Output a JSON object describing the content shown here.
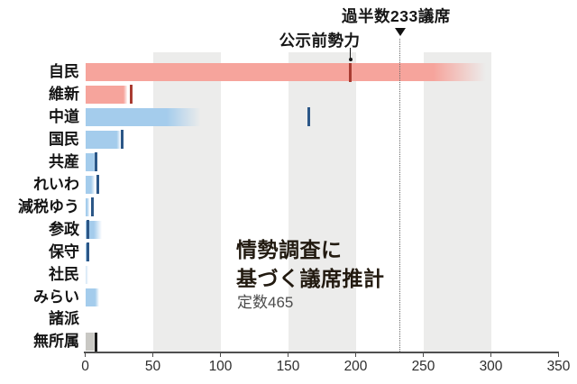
{
  "chart_data": {
    "type": "bar",
    "title_line1": "情勢調査に",
    "title_line2": "基づく議席推計",
    "subtitle": "定数465",
    "total_seats": 465,
    "xlabel": "",
    "ylabel": "",
    "xlim": [
      0,
      350
    ],
    "x_ticks": [
      0,
      50,
      100,
      150,
      200,
      250,
      300,
      350
    ],
    "bands": [
      [
        50,
        100
      ],
      [
        150,
        200
      ],
      [
        250,
        300
      ]
    ],
    "annotations": {
      "majority_label": "過半数233議席",
      "majority_value": 233,
      "pre_label": "公示前勢力",
      "pre_target_party": "自民",
      "pre_target_value": 196
    },
    "note": "horizontal bars = projected seats (solid fading to max estimate); short vertical ticks = pre-election strength (公示前勢力)",
    "parties": [
      {
        "label": "自民",
        "group": "pink",
        "est": 257,
        "est_fade": 296,
        "pre": 196
      },
      {
        "label": "維新",
        "group": "pink",
        "est": 28,
        "est_fade": 31,
        "pre": 34
      },
      {
        "label": "中道",
        "group": "blue",
        "est": 60,
        "est_fade": 85,
        "pre": 165
      },
      {
        "label": "国民",
        "group": "blue",
        "est": 23,
        "est_fade": 26,
        "pre": 27
      },
      {
        "label": "共産",
        "group": "blue",
        "est": 6,
        "est_fade": 8,
        "pre": 8
      },
      {
        "label": "れいわ",
        "group": "blue",
        "est": 4,
        "est_fade": 7,
        "pre": 9
      },
      {
        "label": "減税ゆう",
        "group": "blue",
        "est": 1,
        "est_fade": 3,
        "pre": 5
      },
      {
        "label": "参政",
        "group": "blue",
        "est": 6,
        "est_fade": 12,
        "pre": 2
      },
      {
        "label": "保守",
        "group": "blue",
        "est": 1,
        "est_fade": 2,
        "pre": 2
      },
      {
        "label": "社民",
        "group": "blue_light",
        "est": 0,
        "est_fade": 2,
        "pre": null
      },
      {
        "label": "みらい",
        "group": "blue",
        "est": 7,
        "est_fade": 10,
        "pre": null
      },
      {
        "label": "諸派",
        "group": "blue",
        "est": 0,
        "est_fade": 0,
        "pre": null
      },
      {
        "label": "無所属",
        "group": "gray",
        "est": 6,
        "est_fade": 7,
        "pre": 8
      }
    ]
  },
  "colors": {
    "pink_bar": "#f6a49c",
    "pink_tick": "#a93c32",
    "blue_bar": "#a4ccec",
    "blue_tick": "#2c5787",
    "blue_light_bar": "#cfe3f4",
    "gray_bar": "#c9c8c4",
    "gray_tick": "#1a1a1a",
    "band": "#ececeb",
    "axis": "#4f4f4f"
  }
}
